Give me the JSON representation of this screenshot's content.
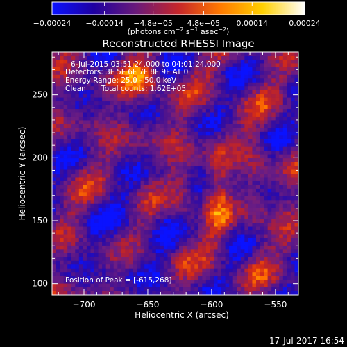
{
  "colorbar": {
    "tick_labels": [
      "−0.00024",
      "−0.00014",
      "−4.8e−05",
      "4.8e−05",
      "0.00014",
      "0.00024"
    ],
    "unit_main": "(photons cm",
    "unit_sup1": "−2",
    "unit_mid1": " s",
    "unit_sup2": "−1",
    "unit_mid2": " asec",
    "unit_sup3": "−2",
    "unit_end": ")",
    "stops": [
      "#0a12ff",
      "#1f00a0",
      "#6a1a7a",
      "#c6262a",
      "#ff7a00",
      "#ffd000",
      "#ffffff"
    ]
  },
  "title": "Reconstructed RHESSI Image",
  "annotations": {
    "time_range": "6-Jul-2015 03:51:24.000 to 04:01:24.000",
    "detectors": "Detectors: 3F 5F 6F 7F 8F 9F AT 0",
    "energy_range": "Energy Range: 25.0 - 50.0 keV",
    "clean_label": "Clean",
    "total_counts": "Total counts: 1.62E+05",
    "peak_position": "Position of Peak = [-615,268]"
  },
  "axes": {
    "xlabel": "Heliocentric X (arcsec)",
    "ylabel": "Heliocentric Y (arcsec)",
    "x_ticks": [
      -700,
      -650,
      -600,
      -550
    ],
    "x_tick_labels": [
      "−700",
      "−650",
      "−600",
      "−550"
    ],
    "y_ticks": [
      100,
      150,
      200,
      250
    ],
    "y_tick_labels": [
      "100",
      "150",
      "200",
      "250"
    ],
    "xlim": [
      -725,
      -532
    ],
    "ylim": [
      91,
      284
    ]
  },
  "footer": {
    "timestamp": "17-Jul-2017 16:54"
  }
}
